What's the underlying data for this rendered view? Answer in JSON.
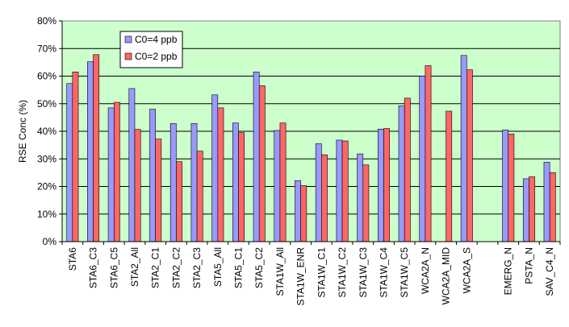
{
  "chart_data": {
    "type": "bar",
    "title": "",
    "xlabel": "",
    "ylabel": "RSE Conc (%)",
    "ylim": [
      0,
      80
    ],
    "yticks": [
      "0%",
      "10%",
      "20%",
      "30%",
      "40%",
      "50%",
      "60%",
      "70%",
      "80%"
    ],
    "grid": true,
    "legend_position": "top-left",
    "plot_background": "#ccffcc",
    "categories": [
      "STA6",
      "STA6_C3",
      "STA6_C5",
      "STA2_All",
      "STA2_C1",
      "STA2_C2",
      "STA2_C3",
      "STA5_All",
      "STA5_C1",
      "STA5_C2",
      "STA1W_All",
      "STA1W_ENR",
      "STA1W_C1",
      "STA1W_C2",
      "STA1W_C3",
      "STA1W_C4",
      "STA1W_C5",
      "WCA2A_N",
      "WCA2A_MID",
      "WCA2A_S",
      "",
      "EMERG_N",
      "PSTA_N",
      "SAV_C4_N"
    ],
    "series": [
      {
        "name": "C0=4 ppb",
        "color": "#9999ff",
        "values": [
          57.3,
          65.2,
          48.5,
          55.5,
          48.0,
          42.8,
          42.8,
          53.2,
          43.0,
          61.5,
          40.3,
          22.1,
          35.5,
          36.8,
          31.8,
          40.8,
          49.2,
          60.0,
          null,
          67.5,
          null,
          40.5,
          22.8,
          28.8
        ]
      },
      {
        "name": "C0=2 ppb",
        "color": "#ff6666",
        "values": [
          61.5,
          67.8,
          50.5,
          40.7,
          37.2,
          29.0,
          32.8,
          48.5,
          39.5,
          56.5,
          43.0,
          20.3,
          31.5,
          36.5,
          27.8,
          41.0,
          52.0,
          63.8,
          47.3,
          62.3,
          null,
          39.0,
          23.5,
          25.0
        ]
      }
    ]
  }
}
